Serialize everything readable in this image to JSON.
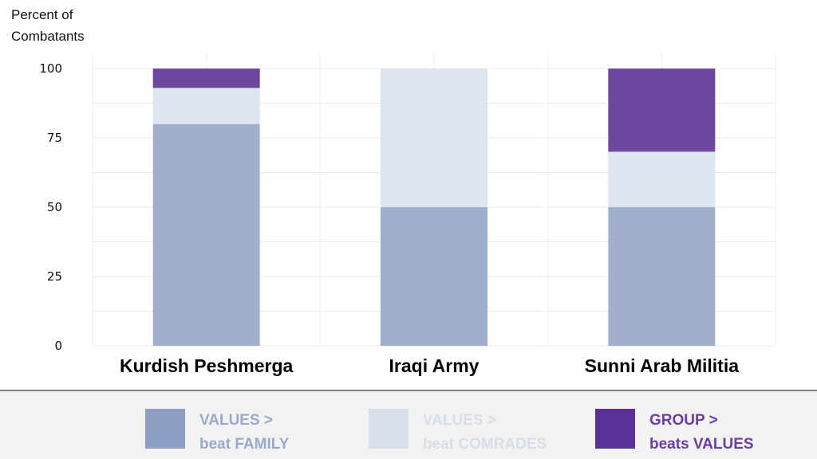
{
  "chart_data": {
    "type": "bar",
    "stacked": true,
    "ylabel_lines": [
      "Percent of",
      "Combatants"
    ],
    "xlabel": "",
    "categories": [
      "Kurdish Peshmerga",
      "Iraqi Army",
      "Sunni Arab Militia"
    ],
    "ylim": [
      0,
      100
    ],
    "yticks": [
      0,
      25,
      50,
      75,
      100
    ],
    "grid": true,
    "legend_placement": "bottom",
    "series": [
      {
        "name_lines": [
          "VALUES  >",
          "beat FAMILY"
        ],
        "color": "#a0afcc",
        "label_color": "#9aa9c7",
        "values": [
          80,
          50,
          50
        ]
      },
      {
        "name_lines": [
          "VALUES  >",
          "beat COMRADES"
        ],
        "color": "#dfe5ee",
        "label_color": "#dde3ec",
        "values": [
          13,
          50,
          20
        ]
      },
      {
        "name_lines": [
          "GROUP  >",
          "beats VALUES"
        ],
        "color": "#6f47a0",
        "label_color": "#6b3fa0",
        "values": [
          7,
          0,
          30
        ]
      }
    ]
  }
}
